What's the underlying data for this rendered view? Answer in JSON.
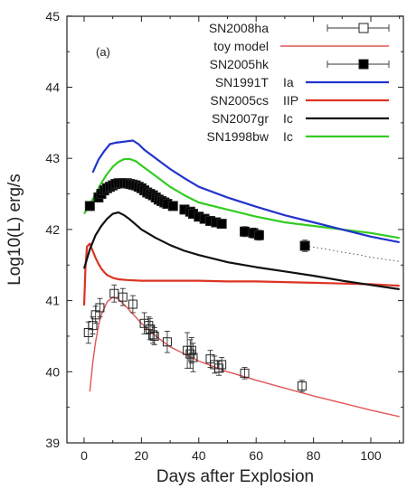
{
  "chart_data": {
    "type": "line",
    "panel_label": "(a)",
    "xlabel": "Days after Explosion",
    "ylabel": "Log10(L) erg/s",
    "xlim": [
      -5,
      110
    ],
    "ylim": [
      39,
      45
    ],
    "xticks": [
      "0",
      "20",
      "40",
      "60",
      "80",
      "100"
    ],
    "yticks": [
      "39",
      "40",
      "41",
      "42",
      "43",
      "44",
      "45"
    ],
    "grid": false,
    "legend_position": "top-right",
    "series": [
      {
        "name": "SN2008ha",
        "kind": "data_open_square",
        "color": "#222222",
        "x": [
          1.5,
          3,
          4,
          5.5,
          10.5,
          13.5,
          17,
          21,
          22.5,
          23,
          24,
          24.5,
          29,
          36,
          37,
          37.5,
          38,
          44,
          45.5,
          47,
          48,
          56,
          76
        ],
        "y": [
          40.55,
          40.65,
          40.8,
          40.9,
          41.1,
          41.05,
          40.95,
          40.68,
          40.65,
          40.6,
          40.52,
          40.5,
          40.42,
          40.3,
          40.25,
          40.3,
          40.2,
          40.18,
          40.1,
          40.05,
          40.1,
          39.98,
          39.8
        ],
        "yerr": [
          0.15,
          0.12,
          0.12,
          0.13,
          0.12,
          0.12,
          0.12,
          0.15,
          0.12,
          0.15,
          0.12,
          0.12,
          0.15,
          0.25,
          0.2,
          0.18,
          0.2,
          0.12,
          0.12,
          0.1,
          0.1,
          0.08,
          0.08
        ]
      },
      {
        "name": "toy model",
        "kind": "line",
        "color": "#e05555",
        "x": [
          2,
          3,
          4,
          5,
          6,
          8,
          10,
          12,
          15,
          20,
          25,
          30,
          40,
          50,
          60,
          70,
          80,
          90,
          100,
          110
        ],
        "y": [
          39.72,
          40.12,
          40.42,
          40.64,
          40.8,
          40.98,
          41.05,
          41.02,
          40.9,
          40.68,
          40.5,
          40.35,
          40.15,
          40.0,
          39.88,
          39.77,
          39.66,
          39.56,
          39.46,
          39.37
        ]
      },
      {
        "name": "SN2005hk",
        "kind": "data_filled_square",
        "color": "#000000",
        "x": [
          2,
          5,
          6,
          7,
          8,
          9,
          10,
          11,
          12,
          13,
          14,
          15,
          16,
          17,
          18,
          19,
          20,
          21,
          22,
          23,
          24,
          25,
          26,
          27,
          28,
          29,
          31,
          35,
          37,
          38,
          40,
          42,
          44,
          46,
          48,
          56,
          59,
          61,
          77
        ],
        "y": [
          42.33,
          42.45,
          42.5,
          42.55,
          42.58,
          42.6,
          42.62,
          42.64,
          42.65,
          42.65,
          42.65,
          42.65,
          42.64,
          42.63,
          42.62,
          42.6,
          42.58,
          42.55,
          42.52,
          42.5,
          42.48,
          42.45,
          42.42,
          42.4,
          42.38,
          42.36,
          42.33,
          42.28,
          42.25,
          42.22,
          42.18,
          42.15,
          42.12,
          42.1,
          42.08,
          41.97,
          41.95,
          41.92,
          41.77
        ],
        "yerr": [
          0.06,
          0.06,
          0.06,
          0.06,
          0.06,
          0.06,
          0.06,
          0.06,
          0.06,
          0.06,
          0.06,
          0.06,
          0.06,
          0.06,
          0.06,
          0.06,
          0.06,
          0.06,
          0.06,
          0.06,
          0.06,
          0.06,
          0.06,
          0.06,
          0.06,
          0.06,
          0.06,
          0.06,
          0.06,
          0.06,
          0.06,
          0.06,
          0.06,
          0.06,
          0.06,
          0.07,
          0.07,
          0.07,
          0.08
        ],
        "extension": {
          "x": [
            77,
            85,
            90,
            95,
            100,
            105,
            110
          ],
          "y": [
            41.77,
            41.72,
            41.68,
            41.65,
            41.61,
            41.58,
            41.55
          ]
        }
      },
      {
        "name": "SN1991T",
        "type_label": "Ia",
        "kind": "line",
        "color": "#2233cc",
        "x": [
          3,
          5,
          7,
          9,
          11,
          13,
          15,
          17,
          19,
          21,
          25,
          30,
          35,
          40,
          50,
          60,
          70,
          80,
          90,
          100,
          110
        ],
        "y": [
          42.8,
          42.98,
          43.1,
          43.2,
          43.22,
          43.23,
          43.24,
          43.25,
          43.2,
          43.12,
          43.0,
          42.85,
          42.72,
          42.6,
          42.45,
          42.32,
          42.2,
          42.1,
          42.0,
          41.9,
          41.82
        ]
      },
      {
        "name": "SN2005cs",
        "type_label": "IIP",
        "kind": "line",
        "color": "#dd3322",
        "x": [
          0,
          0.5,
          1,
          2,
          3,
          4,
          5,
          6,
          7,
          8,
          10,
          12,
          15,
          20,
          30,
          40,
          50,
          60,
          70,
          80,
          90,
          100,
          105,
          110
        ],
        "y": [
          40.93,
          41.5,
          41.76,
          41.8,
          41.7,
          41.6,
          41.52,
          41.45,
          41.4,
          41.36,
          41.32,
          41.3,
          41.29,
          41.28,
          41.28,
          41.28,
          41.27,
          41.27,
          41.26,
          41.25,
          41.24,
          41.23,
          41.22,
          41.21
        ]
      },
      {
        "name": "SN2007gr",
        "type_label": "Ic",
        "kind": "line",
        "color": "#111111",
        "x": [
          0,
          2,
          4,
          6,
          8,
          10,
          12,
          14,
          16,
          18,
          20,
          25,
          30,
          35,
          40,
          50,
          60,
          70,
          80,
          90,
          100,
          110
        ],
        "y": [
          41.45,
          41.72,
          41.92,
          42.05,
          42.15,
          42.22,
          42.24,
          42.2,
          42.14,
          42.07,
          42.0,
          41.88,
          41.78,
          41.7,
          41.64,
          41.54,
          41.47,
          41.41,
          41.35,
          41.28,
          41.22,
          41.16
        ]
      },
      {
        "name": "SN1998bw",
        "type_label": "Ic",
        "kind": "line",
        "color": "#33cc22",
        "x": [
          0,
          2,
          4,
          6,
          8,
          10,
          12,
          14,
          16,
          18,
          20,
          25,
          30,
          35,
          40,
          50,
          60,
          70,
          80,
          90,
          100,
          110
        ],
        "y": [
          42.22,
          42.35,
          42.5,
          42.65,
          42.78,
          42.88,
          42.95,
          42.99,
          42.99,
          42.96,
          42.9,
          42.75,
          42.6,
          42.48,
          42.38,
          42.28,
          42.18,
          42.1,
          42.05,
          42.0,
          41.95,
          41.88
        ]
      }
    ]
  }
}
